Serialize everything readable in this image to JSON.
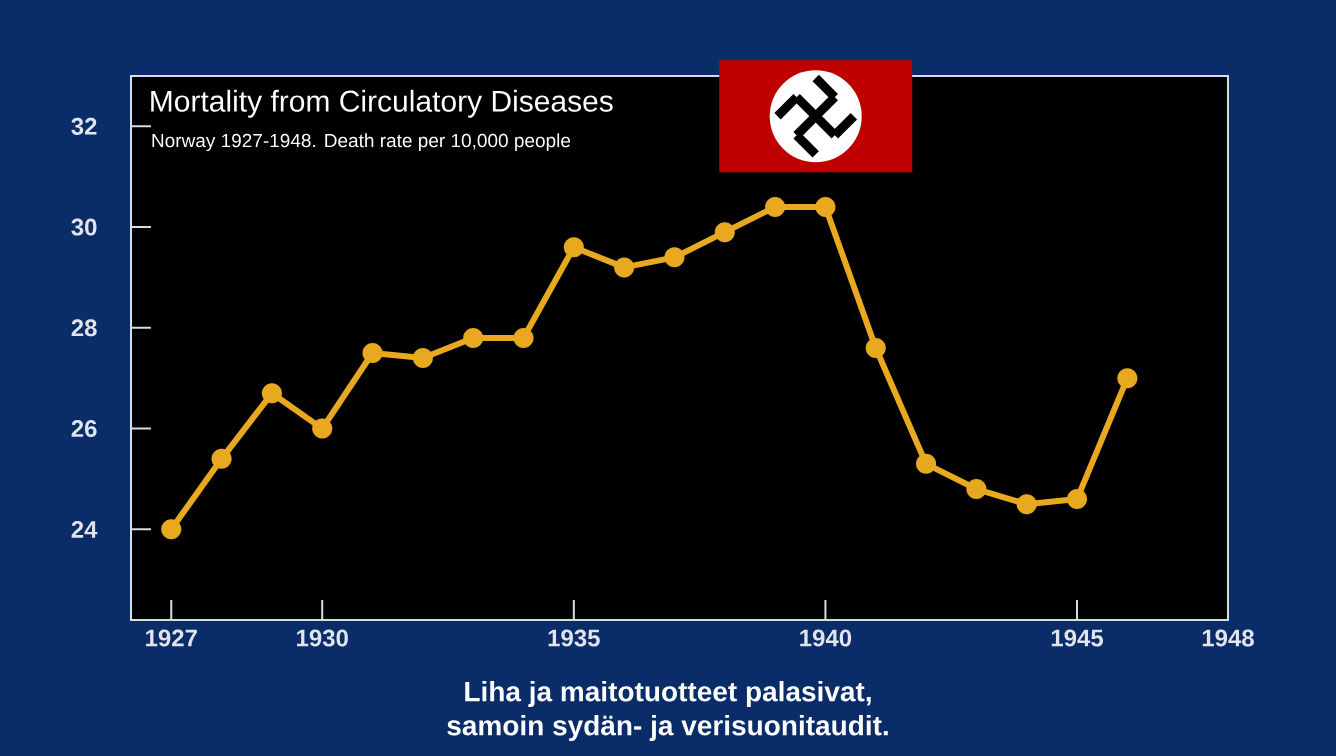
{
  "chart_data": {
    "type": "line",
    "title": "Mortality from Circulatory Diseases",
    "subtitle": "Norway 1927-1948. Death rate per 10,000 people",
    "x": [
      1927,
      1928,
      1929,
      1930,
      1931,
      1932,
      1933,
      1934,
      1935,
      1936,
      1937,
      1938,
      1939,
      1940,
      1941,
      1942,
      1943,
      1944,
      1945,
      1946
    ],
    "values": [
      24.0,
      25.4,
      26.7,
      26.0,
      27.5,
      27.4,
      27.8,
      27.8,
      29.6,
      29.2,
      29.4,
      29.9,
      30.4,
      30.4,
      27.6,
      25.3,
      24.8,
      24.5,
      24.6,
      27.0
    ],
    "color": "#e8a820",
    "marker": "circle",
    "line_style": "solid",
    "xlim": [
      1926.2,
      1948
    ],
    "xticks": [
      1927,
      1930,
      1935,
      1940,
      1945,
      1948
    ],
    "ylim": [
      22.2,
      33
    ],
    "yticks": [
      24,
      26,
      28,
      30,
      32
    ],
    "grid": false,
    "annotations": [
      "Liha ja maitotuotteet palasivat,",
      "samoin sydän- ja verisuonitaudit."
    ]
  }
}
